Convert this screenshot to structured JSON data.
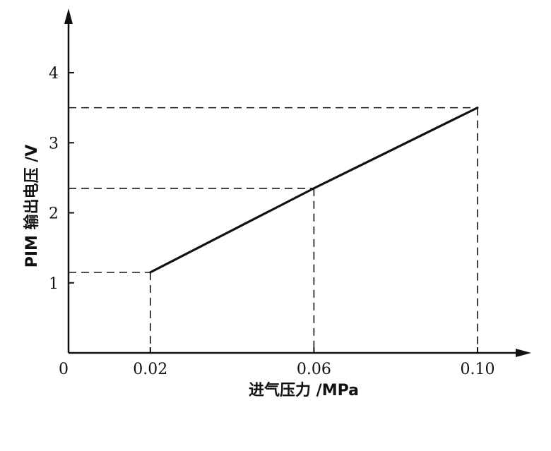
{
  "chart_data": {
    "type": "line",
    "title": "",
    "xlabel": "进气压力 /MPa",
    "ylabel": "PIM 输出电压 /V",
    "origin_label": "0",
    "x_ticks": [
      "0.02",
      "0.06",
      "0.10"
    ],
    "y_ticks": [
      "1",
      "2",
      "3",
      "4"
    ],
    "xlim": [
      0,
      0.12
    ],
    "ylim": [
      0,
      4.5
    ],
    "grid": false,
    "series": [
      {
        "x": [
          0.02,
          0.06,
          0.1
        ],
        "y": [
          1.15,
          2.35,
          3.5
        ]
      }
    ],
    "guide_lines": "dashed projections from each point to both axes"
  }
}
